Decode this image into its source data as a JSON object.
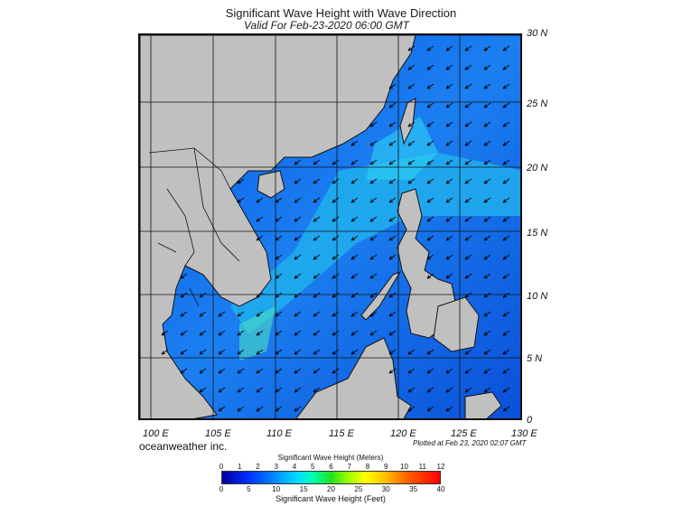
{
  "title": "Significant Wave Height with Wave Direction",
  "subtitle": "Valid For Feb-23-2020 06:00 GMT",
  "lat_labels": [
    "30 N",
    "25 N",
    "20 N",
    "15 N",
    "10 N",
    "5 N",
    "0"
  ],
  "lon_labels": [
    "100 E",
    "105 E",
    "110 E",
    "115 E",
    "120 E",
    "125 E",
    "130 E"
  ],
  "brand": "oceanweather inc.",
  "plotted_note": "Plotted at Feb 23, 2020 02:07 GMT",
  "legend": {
    "meters_title": "Significant Wave Height (Meters)",
    "meters_ticks": [
      "0",
      "1",
      "2",
      "3",
      "4",
      "5",
      "6",
      "7",
      "8",
      "9",
      "10",
      "11",
      "12"
    ],
    "feet_title": "Significant Wave Height (Feet)",
    "feet_ticks": [
      "0",
      "5",
      "10",
      "15",
      "20",
      "25",
      "30",
      "35",
      "40"
    ]
  },
  "map": {
    "lon_range": [
      99,
      130
    ],
    "lat_range": [
      0,
      30
    ],
    "land_color": "#c0c0c0",
    "sea_color": "#1e6cf0",
    "arrow_direction": "southwest"
  }
}
